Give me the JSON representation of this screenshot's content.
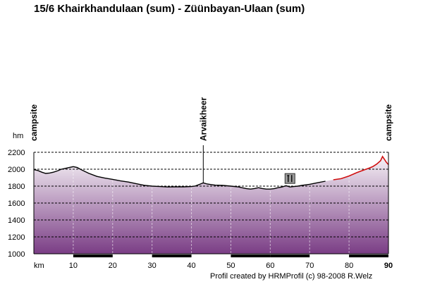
{
  "title": "15/6 Khairkhandulaan (sum) - Züünbayan-Ulaan (sum)",
  "credit": "Profil created by HRMProfil (c) 98-2008 R.Welz",
  "chart_data": {
    "type": "area",
    "ylabel": "hm",
    "xlabel": "km",
    "ylim": [
      1000,
      2200
    ],
    "xlim": [
      0,
      90
    ],
    "yticks": [
      1000,
      1200,
      1400,
      1600,
      1800,
      2000,
      2200
    ],
    "xticks": [
      10,
      20,
      30,
      40,
      50,
      60,
      70,
      80,
      90
    ],
    "grid": true,
    "colors": {
      "profile": "#000000",
      "profile_highlight": "#d01010",
      "fill_top": "#f3eef4",
      "fill_bottom": "#7a3d85",
      "grid": "#000000"
    },
    "profile": [
      [
        0,
        1995
      ],
      [
        1,
        1985
      ],
      [
        2,
        1965
      ],
      [
        3,
        1950
      ],
      [
        4,
        1955
      ],
      [
        5,
        1965
      ],
      [
        6,
        1980
      ],
      [
        7,
        2000
      ],
      [
        8,
        2010
      ],
      [
        9,
        2020
      ],
      [
        10,
        2030
      ],
      [
        11,
        2020
      ],
      [
        12,
        1995
      ],
      [
        14,
        1950
      ],
      [
        16,
        1915
      ],
      [
        18,
        1895
      ],
      [
        20,
        1880
      ],
      [
        22,
        1862
      ],
      [
        24,
        1848
      ],
      [
        26,
        1828
      ],
      [
        28,
        1810
      ],
      [
        30,
        1800
      ],
      [
        32,
        1795
      ],
      [
        34,
        1790
      ],
      [
        36,
        1792
      ],
      [
        38,
        1792
      ],
      [
        40,
        1795
      ],
      [
        41,
        1802
      ],
      [
        42,
        1820
      ],
      [
        43,
        1838
      ],
      [
        44,
        1825
      ],
      [
        45,
        1818
      ],
      [
        46,
        1812
      ],
      [
        48,
        1808
      ],
      [
        50,
        1800
      ],
      [
        52,
        1790
      ],
      [
        53,
        1780
      ],
      [
        54,
        1770
      ],
      [
        55,
        1765
      ],
      [
        56,
        1772
      ],
      [
        57,
        1782
      ],
      [
        58,
        1772
      ],
      [
        59,
        1765
      ],
      [
        60,
        1765
      ],
      [
        61,
        1770
      ],
      [
        62,
        1782
      ],
      [
        63,
        1790
      ],
      [
        64,
        1805
      ],
      [
        65,
        1790
      ],
      [
        66,
        1795
      ],
      [
        67,
        1800
      ],
      [
        68,
        1808
      ],
      [
        69,
        1815
      ],
      [
        70,
        1822
      ],
      [
        72,
        1840
      ],
      [
        74,
        1858
      ],
      [
        76,
        1875
      ],
      [
        78,
        1888
      ],
      [
        80,
        1920
      ],
      [
        82,
        1960
      ],
      [
        84,
        1995
      ],
      [
        85,
        2012
      ],
      [
        86,
        2030
      ],
      [
        87,
        2060
      ],
      [
        88,
        2100
      ],
      [
        88.5,
        2150
      ],
      [
        89,
        2115
      ],
      [
        89.5,
        2080
      ],
      [
        90,
        2055
      ]
    ],
    "highlight_from_km": 75,
    "markers": [
      {
        "km": 0,
        "label": "campsite"
      },
      {
        "km": 43,
        "label": "Arvaikheer"
      },
      {
        "km": 90,
        "label": "campsite"
      }
    ],
    "pois": [
      {
        "km": 65,
        "icon": "restaurant-icon",
        "elevation": 1815
      }
    ],
    "terrain_bar": [
      {
        "from": 10,
        "to": 20,
        "type": "unpaved"
      },
      {
        "from": 30,
        "to": 40,
        "type": "unpaved"
      },
      {
        "from": 50,
        "to": 60,
        "type": "unpaved"
      },
      {
        "from": 60,
        "to": 70,
        "type": "unpaved"
      },
      {
        "from": 80,
        "to": 90,
        "type": "unpaved"
      }
    ]
  }
}
